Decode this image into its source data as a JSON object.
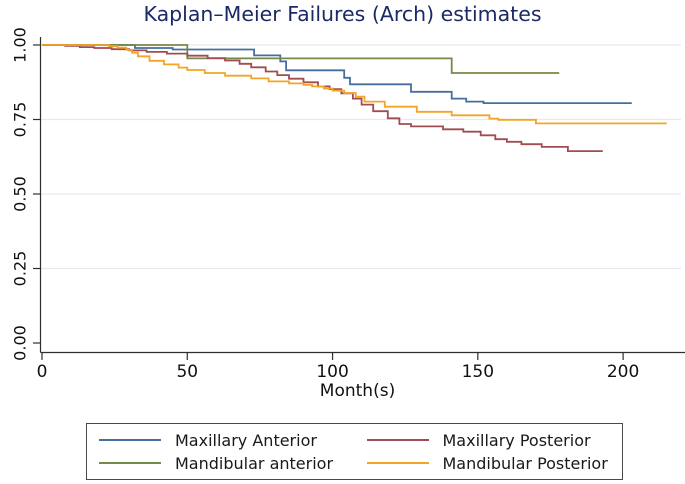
{
  "colors": {
    "title": "#1b2a66",
    "axis": "#2e2e2e",
    "grid": "#e4eaef",
    "tick_text": "#111111",
    "legend_border": "#4a4a4a",
    "blue": "#466f9d",
    "green": "#75894a",
    "maroon": "#a04d52",
    "orange": "#f4a427"
  },
  "legend": {
    "position": "bottom",
    "items": [
      {
        "label": "Maxillary Anterior",
        "color": "#466f9d"
      },
      {
        "label": "Maxillary Posterior",
        "color": "#a04d52"
      },
      {
        "label": "Mandibular anterior",
        "color": "#75894a"
      },
      {
        "label": "Mandibular Posterior",
        "color": "#f4a427"
      }
    ]
  },
  "chart_data": {
    "type": "line",
    "subtype": "step-survival",
    "title": "Kaplan–Meier Failures (Arch) estimates",
    "xlabel": "Month(s)",
    "ylabel": "",
    "xlim": [
      0,
      221
    ],
    "ylim": [
      0.0,
      1.0
    ],
    "grid": "horizontal",
    "legend_position": "bottom",
    "xticks": {
      "values": [
        0,
        50,
        100,
        150,
        200
      ],
      "labels": [
        "0",
        "50",
        "100",
        "150",
        "200"
      ]
    },
    "yticks": {
      "values": [
        0.0,
        0.25,
        0.5,
        0.75,
        1.0
      ],
      "labels": [
        "0.00",
        "0.25",
        "0.50",
        "0.75",
        "1.00"
      ]
    },
    "series": [
      {
        "name": "Maxillary Anterior",
        "color": "#466f9d",
        "points": [
          [
            0,
            1.0
          ],
          [
            32,
            0.99
          ],
          [
            45,
            0.985
          ],
          [
            73,
            0.965
          ],
          [
            82,
            0.945
          ],
          [
            84,
            0.915
          ],
          [
            104,
            0.89
          ],
          [
            106,
            0.868
          ],
          [
            127,
            0.843
          ],
          [
            141,
            0.82
          ],
          [
            146,
            0.81
          ],
          [
            152,
            0.805
          ],
          [
            203,
            0.805
          ]
        ]
      },
      {
        "name": "Mandibular anterior",
        "color": "#75894a",
        "points": [
          [
            0,
            1.0
          ],
          [
            50,
            0.955
          ],
          [
            141,
            0.906
          ],
          [
            178,
            0.906
          ]
        ]
      },
      {
        "name": "Maxillary Posterior",
        "color": "#a04d52",
        "points": [
          [
            0,
            1.0
          ],
          [
            8,
            0.997
          ],
          [
            13,
            0.993
          ],
          [
            18,
            0.99
          ],
          [
            24,
            0.986
          ],
          [
            30,
            0.982
          ],
          [
            36,
            0.977
          ],
          [
            43,
            0.971
          ],
          [
            50,
            0.964
          ],
          [
            57,
            0.956
          ],
          [
            63,
            0.948
          ],
          [
            68,
            0.937
          ],
          [
            72,
            0.925
          ],
          [
            77,
            0.911
          ],
          [
            81,
            0.899
          ],
          [
            85,
            0.887
          ],
          [
            90,
            0.875
          ],
          [
            95,
            0.861
          ],
          [
            99,
            0.852
          ],
          [
            103,
            0.838
          ],
          [
            107,
            0.82
          ],
          [
            110,
            0.8
          ],
          [
            114,
            0.778
          ],
          [
            119,
            0.754
          ],
          [
            123,
            0.735
          ],
          [
            127,
            0.727
          ],
          [
            138,
            0.717
          ],
          [
            145,
            0.709
          ],
          [
            151,
            0.697
          ],
          [
            156,
            0.684
          ],
          [
            160,
            0.675
          ],
          [
            165,
            0.667
          ],
          [
            172,
            0.658
          ],
          [
            181,
            0.644
          ],
          [
            193,
            0.644
          ]
        ]
      },
      {
        "name": "Mandibular Posterior",
        "color": "#f4a427",
        "points": [
          [
            0,
            1.0
          ],
          [
            23,
            0.996
          ],
          [
            26,
            0.991
          ],
          [
            29,
            0.984
          ],
          [
            31,
            0.974
          ],
          [
            33,
            0.962
          ],
          [
            37,
            0.947
          ],
          [
            42,
            0.935
          ],
          [
            47,
            0.924
          ],
          [
            50,
            0.916
          ],
          [
            56,
            0.906
          ],
          [
            63,
            0.897
          ],
          [
            72,
            0.888
          ],
          [
            78,
            0.878
          ],
          [
            85,
            0.871
          ],
          [
            90,
            0.866
          ],
          [
            93,
            0.861
          ],
          [
            97,
            0.854
          ],
          [
            100,
            0.847
          ],
          [
            104,
            0.839
          ],
          [
            108,
            0.827
          ],
          [
            111,
            0.81
          ],
          [
            118,
            0.793
          ],
          [
            129,
            0.776
          ],
          [
            141,
            0.764
          ],
          [
            154,
            0.753
          ],
          [
            157,
            0.749
          ],
          [
            170,
            0.737
          ],
          [
            215,
            0.737
          ]
        ]
      }
    ]
  }
}
